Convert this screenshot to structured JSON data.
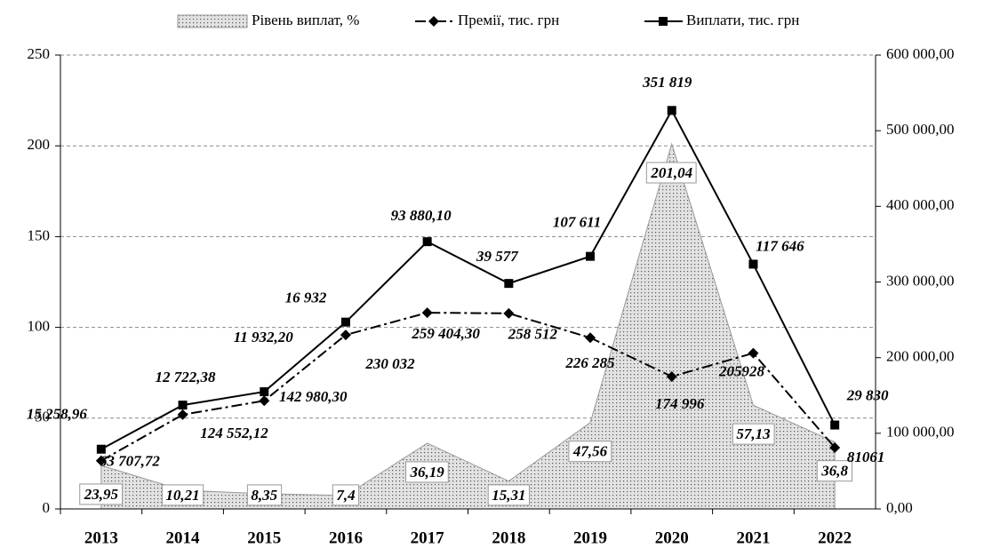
{
  "chart_data": {
    "type": "line",
    "stacked": true,
    "grid": true,
    "legend": "top",
    "categories": [
      "2013",
      "2014",
      "2015",
      "2016",
      "2017",
      "2018",
      "2019",
      "2020",
      "2021",
      "2022"
    ],
    "ylim": [
      0,
      250
    ],
    "yticks": [
      0,
      50,
      100,
      150,
      200,
      250
    ],
    "y2lim": [
      0,
      600000
    ],
    "y2ticks": [
      {
        "value": 0,
        "label": "0,00"
      },
      {
        "value": 100000,
        "label": "100 000,00"
      },
      {
        "value": 200000,
        "label": "200 000,00"
      },
      {
        "value": 300000,
        "label": "300 000,00"
      },
      {
        "value": 400000,
        "label": "400 000,00"
      },
      {
        "value": 500000,
        "label": "500 000,00"
      },
      {
        "value": 600000,
        "label": "600 000,00"
      }
    ],
    "series": [
      {
        "name": "Рівень виплат, %",
        "type": "area",
        "color": "#d0d0d0",
        "values": [
          23.95,
          10.21,
          8.35,
          7.4,
          36.19,
          15.31,
          47.56,
          201.04,
          57.13,
          36.8
        ],
        "value_labels": [
          "23,95",
          "10,21",
          "8,35",
          "7,4",
          "36,19",
          "15,31",
          "47,56",
          "201,04",
          "57,13",
          "36,8"
        ]
      },
      {
        "name": "Премії, тис. грн",
        "type": "line",
        "axis": "y2",
        "color": "#000000",
        "dash": "dash-dot",
        "marker": "diamond",
        "values": [
          63707.72,
          124552.12,
          142980.3,
          230032,
          259404.3,
          258512,
          226285,
          174996,
          205928,
          81061
        ],
        "value_labels": [
          "63 707,72",
          "124 552,12",
          "142 980,30",
          "230 032",
          "259 404,30",
          "258 512",
          "226 285",
          "174 996",
          "205928",
          "81061"
        ]
      },
      {
        "name": "Виплати, тис. грн",
        "type": "line",
        "axis": "y2",
        "color": "#000000",
        "dash": "solid",
        "marker": "square",
        "values": [
          15258.96,
          12722.38,
          11932.2,
          16932,
          93880.1,
          39577,
          107611,
          351819,
          117646,
          29830
        ],
        "value_labels": [
          "15 258,96",
          "12 722,38",
          "11 932,20",
          "16 932",
          "93 880,10",
          "39 577",
          "107 611",
          "351 819",
          "117 646",
          "29 830"
        ]
      }
    ]
  }
}
